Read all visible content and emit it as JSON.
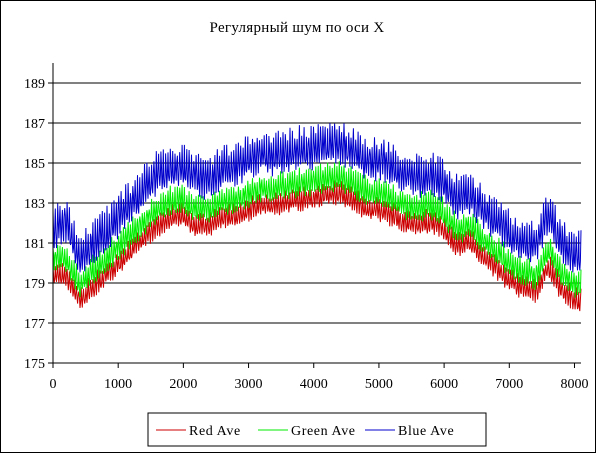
{
  "chart_data": {
    "type": "line",
    "title": "Регулярный шум по оси X",
    "xlabel": "",
    "ylabel": "",
    "xlim": [
      0,
      8100
    ],
    "ylim": [
      175,
      190
    ],
    "xticks": [
      0,
      1000,
      2000,
      3000,
      4000,
      5000,
      6000,
      7000,
      8000
    ],
    "yticks": [
      175,
      177,
      179,
      181,
      183,
      185,
      187,
      189
    ],
    "grid": "horizontal major lines",
    "legend_position": "bottom-center",
    "x": [
      0,
      200,
      400,
      600,
      800,
      1000,
      1200,
      1400,
      1600,
      1800,
      2000,
      2200,
      2400,
      2600,
      2800,
      3000,
      3200,
      3400,
      3600,
      3800,
      4000,
      4200,
      4400,
      4600,
      4800,
      5000,
      5200,
      5400,
      5600,
      5800,
      6000,
      6200,
      6400,
      6600,
      6800,
      7000,
      7200,
      7400,
      7600,
      7800,
      8000,
      8100
    ],
    "series": [
      {
        "name": "Red Ave",
        "color": "#cc0000",
        "values": [
          179.3,
          179.4,
          178.1,
          178.7,
          179.3,
          179.9,
          180.6,
          181.2,
          181.8,
          182.2,
          182.3,
          181.8,
          181.8,
          182.2,
          182.3,
          182.6,
          182.9,
          182.8,
          183.0,
          183.1,
          183.2,
          183.4,
          183.4,
          183.1,
          182.7,
          182.6,
          182.3,
          182.0,
          181.9,
          182.0,
          181.6,
          180.8,
          181.0,
          180.3,
          179.7,
          179.1,
          178.7,
          178.5,
          179.8,
          178.6,
          178.1,
          178.0
        ],
        "amplitude": 0.5
      },
      {
        "name": "Green Ave",
        "color": "#00ee00",
        "values": [
          180.1,
          180.2,
          178.9,
          179.5,
          180.1,
          180.7,
          181.4,
          182.0,
          182.6,
          183.0,
          183.1,
          182.6,
          182.6,
          183.0,
          183.1,
          183.4,
          183.7,
          183.6,
          183.8,
          183.9,
          184.0,
          184.2,
          184.2,
          183.9,
          183.5,
          183.4,
          183.1,
          182.8,
          182.7,
          182.8,
          182.4,
          181.6,
          181.8,
          181.1,
          180.5,
          179.9,
          179.5,
          179.3,
          180.6,
          179.4,
          178.9,
          178.8
        ],
        "amplitude": 0.6
      },
      {
        "name": "Blue Ave",
        "color": "#0000cc",
        "values": [
          181.6,
          182.0,
          180.2,
          180.9,
          181.4,
          182.2,
          182.9,
          183.6,
          184.3,
          184.6,
          184.7,
          184.2,
          184.1,
          184.6,
          184.8,
          185.1,
          185.4,
          185.3,
          185.5,
          185.6,
          185.6,
          185.8,
          185.9,
          185.5,
          185.1,
          185.0,
          184.7,
          184.4,
          184.2,
          184.3,
          183.9,
          183.1,
          183.3,
          182.6,
          182.0,
          181.4,
          181.0,
          180.9,
          182.3,
          180.9,
          180.4,
          180.3
        ],
        "amplitude": 0.9
      }
    ]
  }
}
